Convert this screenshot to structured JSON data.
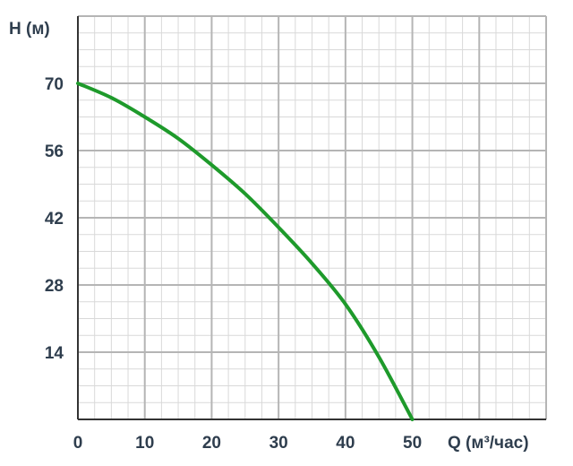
{
  "chart_data": {
    "type": "line",
    "title": "",
    "ylabel": "H (м)",
    "xlabel": "Q (м³/час)",
    "xlim": [
      0,
      70
    ],
    "ylim": [
      0,
      84
    ],
    "x_ticks": [
      0,
      10,
      20,
      30,
      40,
      50
    ],
    "y_ticks": [
      14,
      28,
      42,
      56,
      70
    ],
    "x_tick_labels": [
      "0",
      "10",
      "20",
      "30",
      "40",
      "50"
    ],
    "y_tick_labels": [
      "14",
      "28",
      "42",
      "56",
      "70"
    ],
    "x_minor_step": 2.5,
    "y_minor_step": 3.5,
    "grid": true,
    "series": [
      {
        "color": "#1e9a2b",
        "x": [
          0,
          5,
          10,
          15,
          20,
          25,
          30,
          35,
          40,
          45,
          50
        ],
        "y": [
          70,
          67,
          63,
          58.5,
          53,
          47,
          40,
          32.5,
          24,
          13,
          0
        ]
      }
    ]
  }
}
